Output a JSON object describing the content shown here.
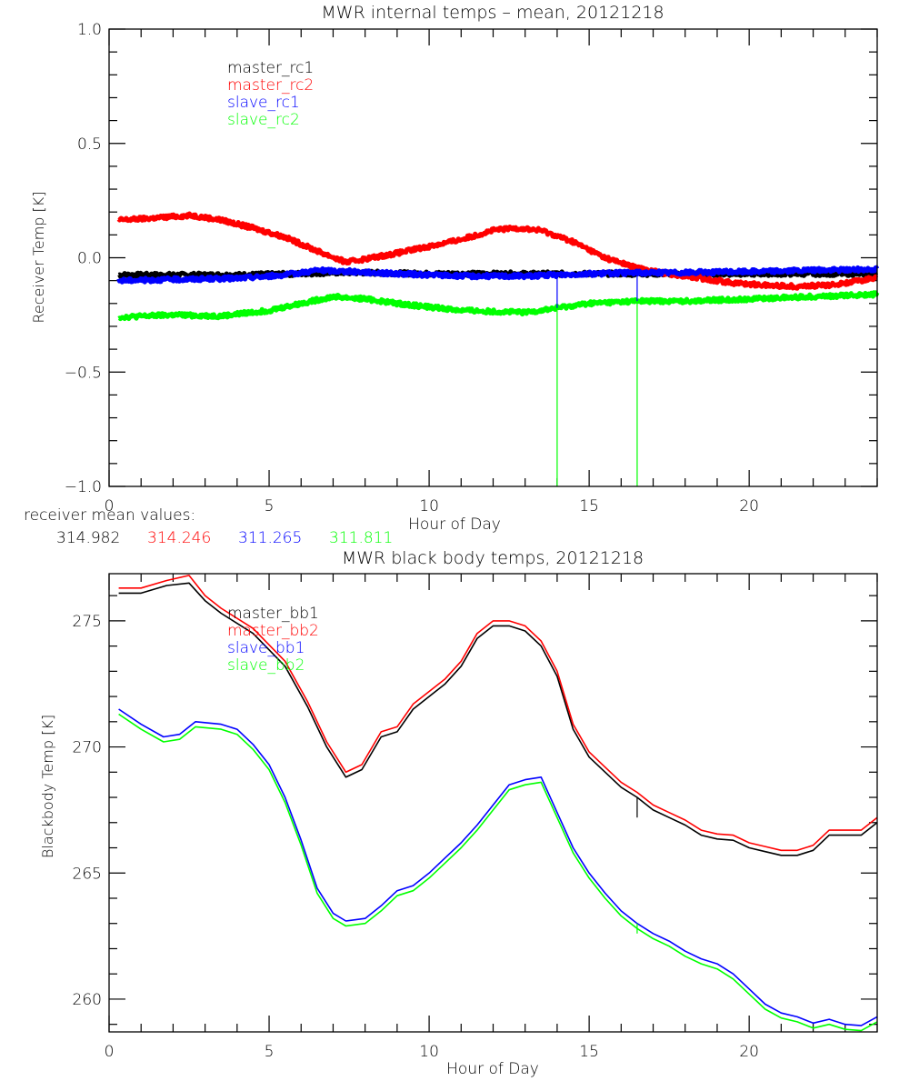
{
  "chart_data": [
    {
      "type": "line",
      "title": "MWR internal temps – mean, 20121218",
      "xlabel": "Hour of Day",
      "ylabel": "Receiver Temp [K]",
      "xlim": [
        0,
        24
      ],
      "ylim": [
        -1.0,
        1.0
      ],
      "xticks": [
        0,
        5,
        10,
        15,
        20
      ],
      "xtick_labels": [
        "0",
        "5",
        "10",
        "15",
        "20"
      ],
      "yticks": [
        -1.0,
        -0.5,
        0.0,
        0.5,
        1.0
      ],
      "ytick_labels": [
        "−1.0",
        "−0.5",
        "0.0",
        "0.5",
        "1.0"
      ],
      "grid": false,
      "legend_position": "top-left",
      "legend": [
        "master_rc1",
        "master_rc2",
        "slave_rc1",
        "slave_rc2"
      ],
      "series": [
        {
          "name": "master_rc1",
          "color": "#000000",
          "x": [
            0.3,
            2,
            4,
            6,
            7,
            8,
            10,
            12,
            14,
            16,
            18,
            20,
            22,
            24
          ],
          "y": [
            -0.075,
            -0.075,
            -0.075,
            -0.07,
            -0.065,
            -0.065,
            -0.07,
            -0.07,
            -0.07,
            -0.07,
            -0.07,
            -0.07,
            -0.07,
            -0.07
          ]
        },
        {
          "name": "master_rc2",
          "color": "#ff0000",
          "x": [
            0.3,
            1,
            2,
            2.6,
            3.5,
            4.5,
            5.5,
            6.5,
            7.4,
            8,
            9,
            10,
            11,
            12,
            12.7,
            13.5,
            14.5,
            15.5,
            16.5,
            17.5,
            18.5,
            19.5,
            20.5,
            21.5,
            22.5,
            23.5,
            24
          ],
          "y": [
            0.165,
            0.17,
            0.18,
            0.185,
            0.165,
            0.13,
            0.09,
            0.03,
            -0.02,
            -0.005,
            0.02,
            0.05,
            0.08,
            0.12,
            0.13,
            0.12,
            0.07,
            0.0,
            -0.045,
            -0.07,
            -0.09,
            -0.11,
            -0.12,
            -0.125,
            -0.12,
            -0.1,
            -0.085
          ]
        },
        {
          "name": "slave_rc1",
          "color": "#0000ff",
          "x": [
            0.3,
            2,
            4,
            5.5,
            6.5,
            7.5,
            9,
            11,
            13,
            14,
            15,
            16.5,
            18,
            20,
            22,
            24
          ],
          "y": [
            -0.1,
            -0.095,
            -0.09,
            -0.075,
            -0.055,
            -0.06,
            -0.07,
            -0.08,
            -0.08,
            -0.075,
            -0.07,
            -0.065,
            -0.065,
            -0.06,
            -0.055,
            -0.05
          ]
        },
        {
          "name": "slave_rc2",
          "color": "#00ff00",
          "x": [
            0.3,
            2,
            3.5,
            5,
            6,
            7,
            8,
            9,
            11,
            13,
            14,
            15,
            16.5,
            18,
            20,
            22,
            24
          ],
          "y": [
            -0.26,
            -0.25,
            -0.255,
            -0.23,
            -0.2,
            -0.17,
            -0.18,
            -0.2,
            -0.23,
            -0.24,
            -0.22,
            -0.2,
            -0.19,
            -0.19,
            -0.18,
            -0.17,
            -0.16
          ]
        }
      ],
      "spikes": [
        {
          "x": 14.0,
          "y_from": -0.08,
          "y_to": -1.0,
          "color_upper": "#0000ff",
          "color_lower": "#00ff00",
          "split_y": -0.22
        },
        {
          "x": 16.5,
          "y_from": -0.065,
          "y_to": -1.0,
          "color_upper": "#0000ff",
          "color_lower": "#00ff00",
          "split_y": -0.19
        }
      ]
    },
    {
      "type": "line",
      "title": "MWR black body temps, 20121218",
      "xlabel": "Hour of Day",
      "ylabel": "Blackbody Temp [K]",
      "xlim": [
        0,
        24
      ],
      "ylim": [
        258.7,
        276.87
      ],
      "xticks": [
        0,
        5,
        10,
        15,
        20
      ],
      "xtick_labels": [
        "0",
        "5",
        "10",
        "15",
        "20"
      ],
      "yticks": [
        260,
        265,
        270,
        275
      ],
      "ytick_labels": [
        "260",
        "265",
        "270",
        "275"
      ],
      "grid": false,
      "legend_position": "top-left",
      "legend": [
        "master_bb1",
        "master_bb2",
        "slave_bb1",
        "slave_bb2"
      ],
      "series": [
        {
          "name": "master_bb1",
          "color": "#000000",
          "x": [
            0.3,
            1,
            1.8,
            2.5,
            3,
            3.5,
            4.5,
            5.5,
            6.2,
            6.8,
            7.4,
            7.9,
            8.5,
            9,
            9.5,
            10.5,
            11,
            11.5,
            12,
            12.5,
            13,
            13.5,
            14,
            14.5,
            15,
            15.5,
            16,
            16.5,
            17,
            17.5,
            18,
            18.5,
            19,
            19.5,
            20,
            20.5,
            21,
            21.5,
            22,
            22.5,
            23,
            23.5,
            24
          ],
          "y": [
            276.1,
            276.1,
            276.4,
            276.5,
            275.8,
            275.3,
            274.5,
            273.2,
            271.6,
            270.0,
            268.8,
            269.1,
            270.4,
            270.6,
            271.5,
            272.5,
            273.2,
            274.3,
            274.8,
            274.8,
            274.6,
            274.0,
            272.8,
            270.7,
            269.6,
            269.0,
            268.4,
            268.0,
            267.5,
            267.2,
            266.9,
            266.5,
            266.35,
            266.3,
            266.0,
            265.85,
            265.7,
            265.7,
            265.9,
            266.5,
            266.5,
            266.5,
            267.0
          ]
        },
        {
          "name": "master_bb2",
          "color": "#ff0000",
          "x": [
            0.3,
            1,
            1.8,
            2.5,
            3,
            3.5,
            4.5,
            5.5,
            6.2,
            6.8,
            7.4,
            7.9,
            8.5,
            9,
            9.5,
            10.5,
            11,
            11.5,
            12,
            12.5,
            13,
            13.5,
            14,
            14.5,
            15,
            15.5,
            16,
            16.5,
            17,
            17.5,
            18,
            18.5,
            19,
            19.5,
            20,
            20.5,
            21,
            21.5,
            22,
            22.5,
            23,
            23.5,
            24
          ],
          "y": [
            276.3,
            276.3,
            276.6,
            276.8,
            276.0,
            275.5,
            274.7,
            273.4,
            271.8,
            270.2,
            269.0,
            269.3,
            270.6,
            270.8,
            271.7,
            272.7,
            273.4,
            274.5,
            275.0,
            275.0,
            274.8,
            274.2,
            273.0,
            270.9,
            269.8,
            269.2,
            268.6,
            268.2,
            267.7,
            267.4,
            267.1,
            266.7,
            266.55,
            266.5,
            266.2,
            266.05,
            265.9,
            265.9,
            266.1,
            266.7,
            266.7,
            266.7,
            267.2
          ]
        },
        {
          "name": "slave_bb1",
          "color": "#0000ff",
          "x": [
            0.3,
            1,
            1.7,
            2.2,
            2.7,
            3.5,
            4,
            4.5,
            5,
            5.5,
            6,
            6.5,
            7,
            7.4,
            8,
            8.5,
            9,
            9.5,
            10,
            10.5,
            11,
            11.5,
            12,
            12.5,
            13,
            13.5,
            14,
            14.5,
            15,
            15.5,
            16,
            16.5,
            17,
            17.5,
            18,
            18.5,
            19,
            19.5,
            20,
            20.5,
            21,
            21.5,
            22,
            22.5,
            23,
            23.5,
            24
          ],
          "y": [
            271.5,
            270.9,
            270.4,
            270.5,
            271.0,
            270.9,
            270.7,
            270.1,
            269.3,
            268.0,
            266.3,
            264.4,
            263.4,
            263.1,
            263.2,
            263.7,
            264.3,
            264.5,
            265.0,
            265.6,
            266.2,
            266.9,
            267.7,
            268.5,
            268.7,
            268.8,
            267.4,
            266.0,
            265.0,
            264.2,
            263.5,
            263.0,
            262.6,
            262.3,
            261.9,
            261.6,
            261.4,
            261.0,
            260.4,
            259.8,
            259.45,
            259.3,
            259.05,
            259.2,
            259.0,
            258.95,
            259.3
          ]
        },
        {
          "name": "slave_bb2",
          "color": "#00ff00",
          "x": [
            0.3,
            1,
            1.7,
            2.2,
            2.7,
            3.5,
            4,
            4.5,
            5,
            5.5,
            6,
            6.5,
            7,
            7.4,
            8,
            8.5,
            9,
            9.5,
            10,
            10.5,
            11,
            11.5,
            12,
            12.5,
            13,
            13.5,
            14,
            14.5,
            15,
            15.5,
            16,
            16.5,
            17,
            17.5,
            18,
            18.5,
            19,
            19.5,
            20,
            20.5,
            21,
            21.5,
            22,
            22.5,
            23,
            23.5,
            24
          ],
          "y": [
            271.3,
            270.7,
            270.2,
            270.3,
            270.8,
            270.7,
            270.5,
            269.9,
            269.1,
            267.8,
            266.1,
            264.2,
            263.2,
            262.9,
            263.0,
            263.5,
            264.1,
            264.3,
            264.8,
            265.4,
            266.0,
            266.7,
            267.5,
            268.3,
            268.5,
            268.6,
            267.2,
            265.8,
            264.8,
            264.0,
            263.3,
            262.8,
            262.4,
            262.1,
            261.7,
            261.4,
            261.2,
            260.8,
            260.2,
            259.6,
            259.25,
            259.1,
            258.85,
            259.0,
            258.8,
            258.75,
            259.1
          ]
        }
      ],
      "spikes": [
        {
          "x": 16.5,
          "y_from": 268.0,
          "y_to": 267.2,
          "color": "#000000"
        },
        {
          "x": 16.5,
          "y_from": 263.0,
          "y_to": 262.6,
          "color": "#00ff00"
        }
      ]
    }
  ],
  "receiver_mean": {
    "label": "receiver mean values:",
    "values": [
      {
        "text": "314.982",
        "color": "#000000"
      },
      {
        "text": "314.246",
        "color": "#ff0000"
      },
      {
        "text": "311.265",
        "color": "#0000ff"
      },
      {
        "text": "311.811",
        "color": "#00ff00"
      }
    ]
  }
}
